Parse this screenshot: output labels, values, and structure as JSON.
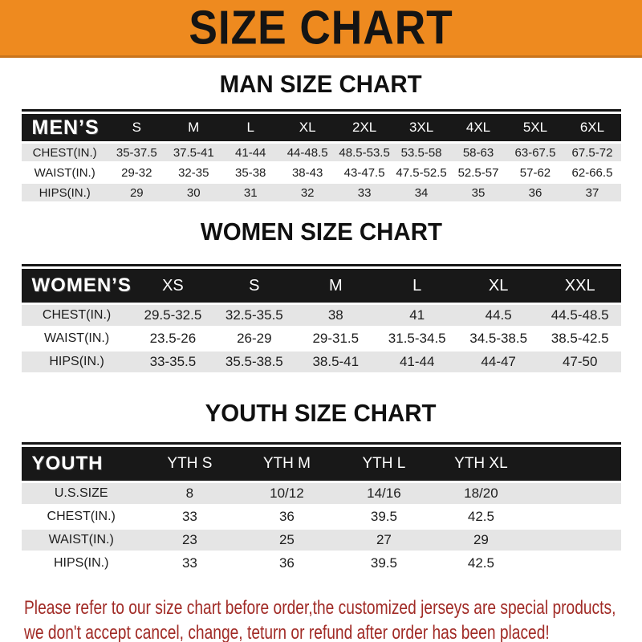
{
  "banner": {
    "title": "SIZE CHART"
  },
  "colors": {
    "banner_bg": "#EE8A1F",
    "banner_text": "#141414",
    "header_bar_bg": "#181818",
    "header_bar_text": "#FFFFFF",
    "alt_row_bg": "#E5E5E5",
    "footer_text": "#A12B26"
  },
  "sections": {
    "men": {
      "heading": "MAN SIZE CHART",
      "table": {
        "header_label": "MEN’S",
        "sizes": [
          "S",
          "M",
          "L",
          "XL",
          "2XL",
          "3XL",
          "4XL",
          "5XL",
          "6XL"
        ],
        "rows": [
          {
            "label": "CHEST(IN.)",
            "values": [
              "35-37.5",
              "37.5-41",
              "41-44",
              "44-48.5",
              "48.5-53.5",
              "53.5-58",
              "58-63",
              "63-67.5",
              "67.5-72"
            ]
          },
          {
            "label": "WAIST(IN.)",
            "values": [
              "29-32",
              "32-35",
              "35-38",
              "38-43",
              "43-47.5",
              "47.5-52.5",
              "52.5-57",
              "57-62",
              "62-66.5"
            ]
          },
          {
            "label": "HIPS(IN.)",
            "values": [
              "29",
              "30",
              "31",
              "32",
              "33",
              "34",
              "35",
              "36",
              "37"
            ]
          }
        ]
      }
    },
    "women": {
      "heading": "WOMEN SIZE CHART",
      "table": {
        "header_label": "WOMEN’S",
        "sizes": [
          "XS",
          "S",
          "M",
          "L",
          "XL",
          "XXL"
        ],
        "rows": [
          {
            "label": "CHEST(IN.)",
            "values": [
              "29.5-32.5",
              "32.5-35.5",
              "38",
              "41",
              "44.5",
              "44.5-48.5"
            ]
          },
          {
            "label": "WAIST(IN.)",
            "values": [
              "23.5-26",
              "26-29",
              "29-31.5",
              "31.5-34.5",
              "34.5-38.5",
              "38.5-42.5"
            ]
          },
          {
            "label": "HIPS(IN.)",
            "values": [
              "33-35.5",
              "35.5-38.5",
              "38.5-41",
              "41-44",
              "44-47",
              "47-50"
            ]
          }
        ]
      }
    },
    "youth": {
      "heading": "YOUTH SIZE CHART",
      "table": {
        "header_label": "YOUTH",
        "sizes": [
          "YTH S",
          "YTH M",
          "YTH L",
          "YTH XL"
        ],
        "rows": [
          {
            "label": "U.S.SIZE",
            "values": [
              "8",
              "10/12",
              "14/16",
              "18/20"
            ]
          },
          {
            "label": "CHEST(IN.)",
            "values": [
              "33",
              "36",
              "39.5",
              "42.5"
            ]
          },
          {
            "label": "WAIST(IN.)",
            "values": [
              "23",
              "25",
              "27",
              "29"
            ]
          },
          {
            "label": "HIPS(IN.)",
            "values": [
              "33",
              "36",
              "39.5",
              "42.5"
            ]
          }
        ]
      }
    }
  },
  "footer": {
    "line1": "Please refer to our size chart before order,the customized jerseys are special products,",
    "line2": "we don't accept cancel, change, teturn or refund after order has been placed!"
  }
}
